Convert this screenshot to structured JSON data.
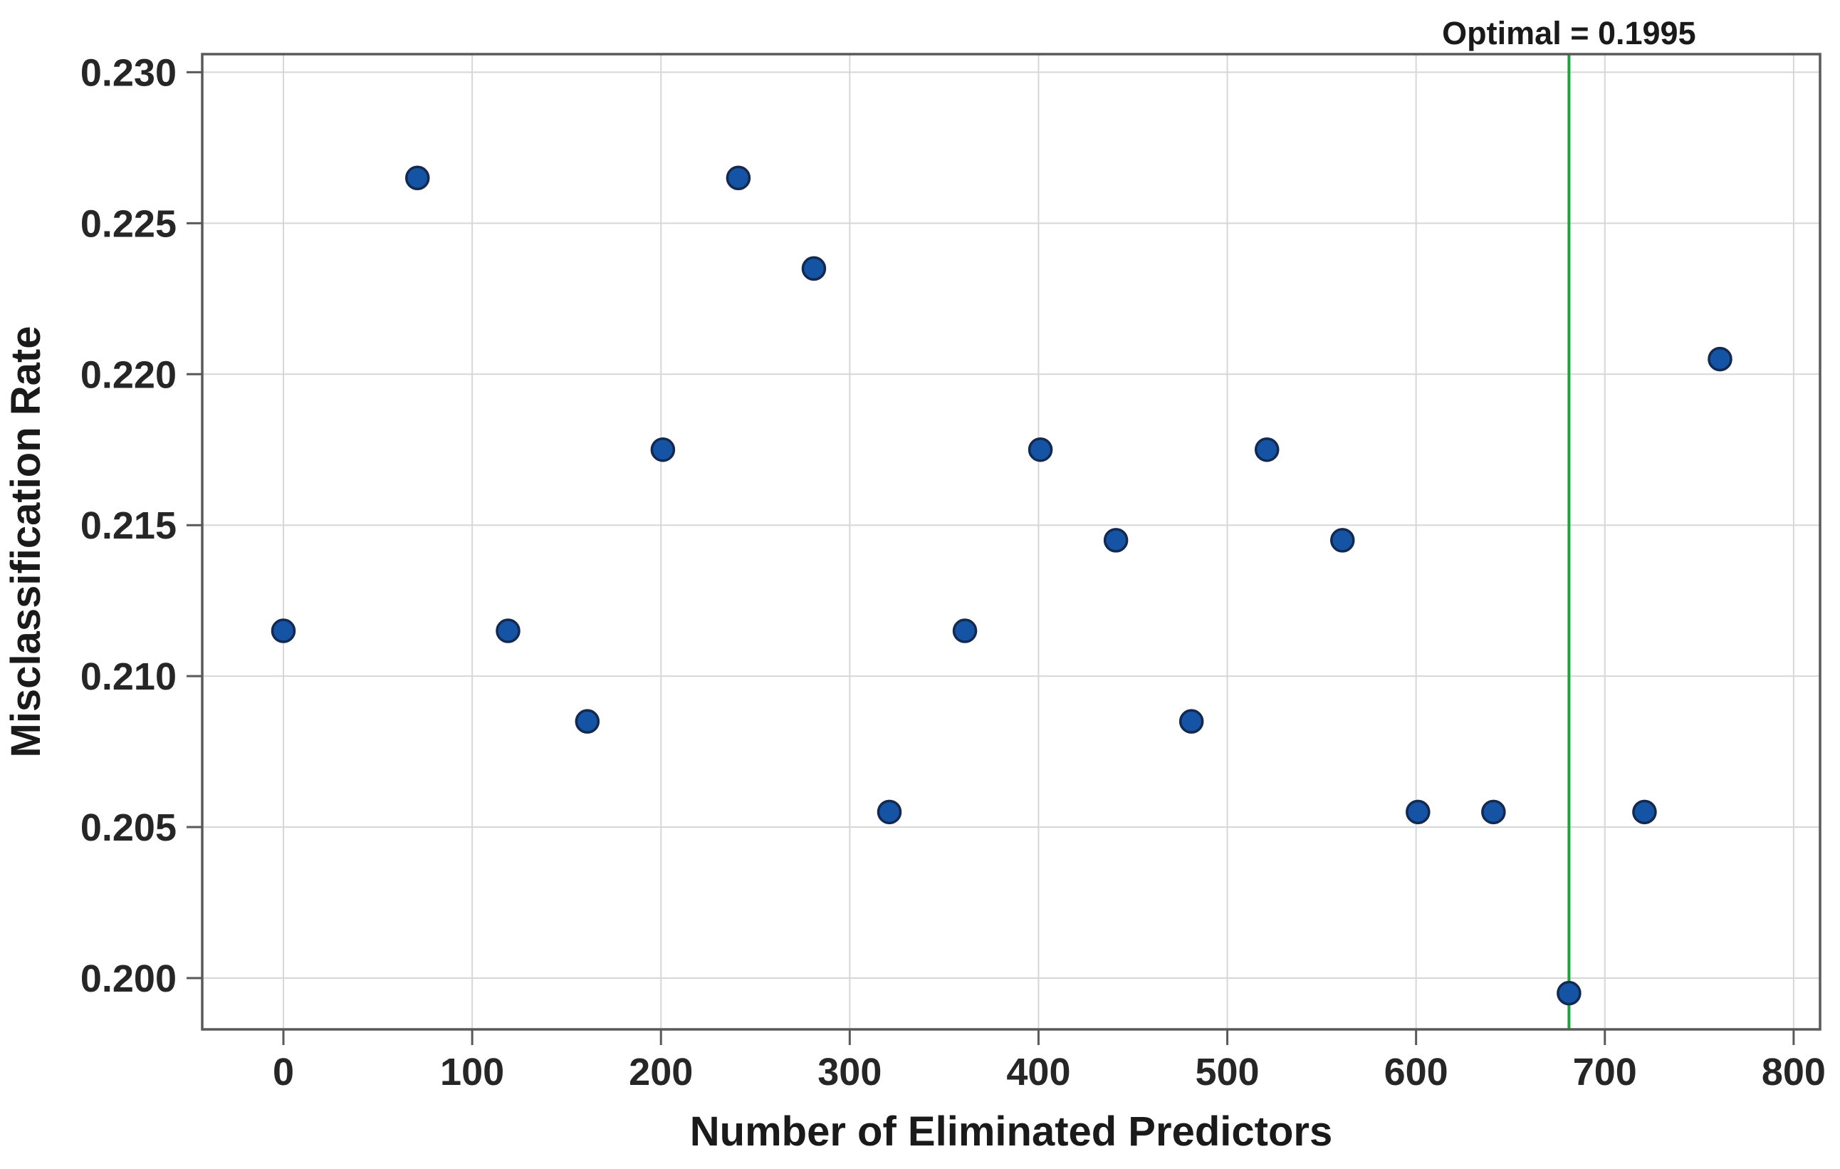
{
  "figure": {
    "background": "#FFFFFF"
  },
  "chart_data": {
    "type": "scatter",
    "title": "",
    "xlabel": "Number of Eliminated Predictors",
    "ylabel": "Misclassification Rate",
    "x": [
      0,
      71,
      119,
      161,
      201,
      241,
      281,
      321,
      361,
      401,
      441,
      481,
      521,
      561,
      601,
      641,
      681,
      721,
      761
    ],
    "y": [
      0.2115,
      0.2265,
      0.2115,
      0.2085,
      0.2175,
      0.2265,
      0.2235,
      0.2055,
      0.2115,
      0.2175,
      0.2145,
      0.2085,
      0.2175,
      0.2145,
      0.2055,
      0.2055,
      0.1995,
      0.2055,
      0.2205
    ],
    "xlim": [
      -43,
      814
    ],
    "ylim": [
      0.1983,
      0.2306
    ],
    "xticks": [
      0,
      100,
      200,
      300,
      400,
      500,
      600,
      700,
      800
    ],
    "xtick_labels": [
      "0",
      "100",
      "200",
      "300",
      "400",
      "500",
      "600",
      "700",
      "800"
    ],
    "yticks": [
      0.2,
      0.205,
      0.21,
      0.215,
      0.22,
      0.225,
      0.23
    ],
    "ytick_labels": [
      "0.200",
      "0.205",
      "0.210",
      "0.215",
      "0.220",
      "0.225",
      "0.230"
    ],
    "grid": true,
    "legend_position": "none",
    "reference_line": {
      "orientation": "vertical",
      "x": 681,
      "value": 0.1995,
      "label": "Optimal = 0.1995",
      "color": "#1CA43C"
    },
    "marker": {
      "fill": "#1553A5",
      "stroke": "#13294F"
    }
  },
  "colors": {
    "frame": "#595959",
    "grid": "#D7D7D7",
    "tick_text": "#262626",
    "title_text": "#1A1A1A",
    "annotation_text": "#1A1A1A",
    "reference_green": "#1CA43C",
    "point_fill": "#1553A5",
    "point_edge": "#13294F"
  }
}
